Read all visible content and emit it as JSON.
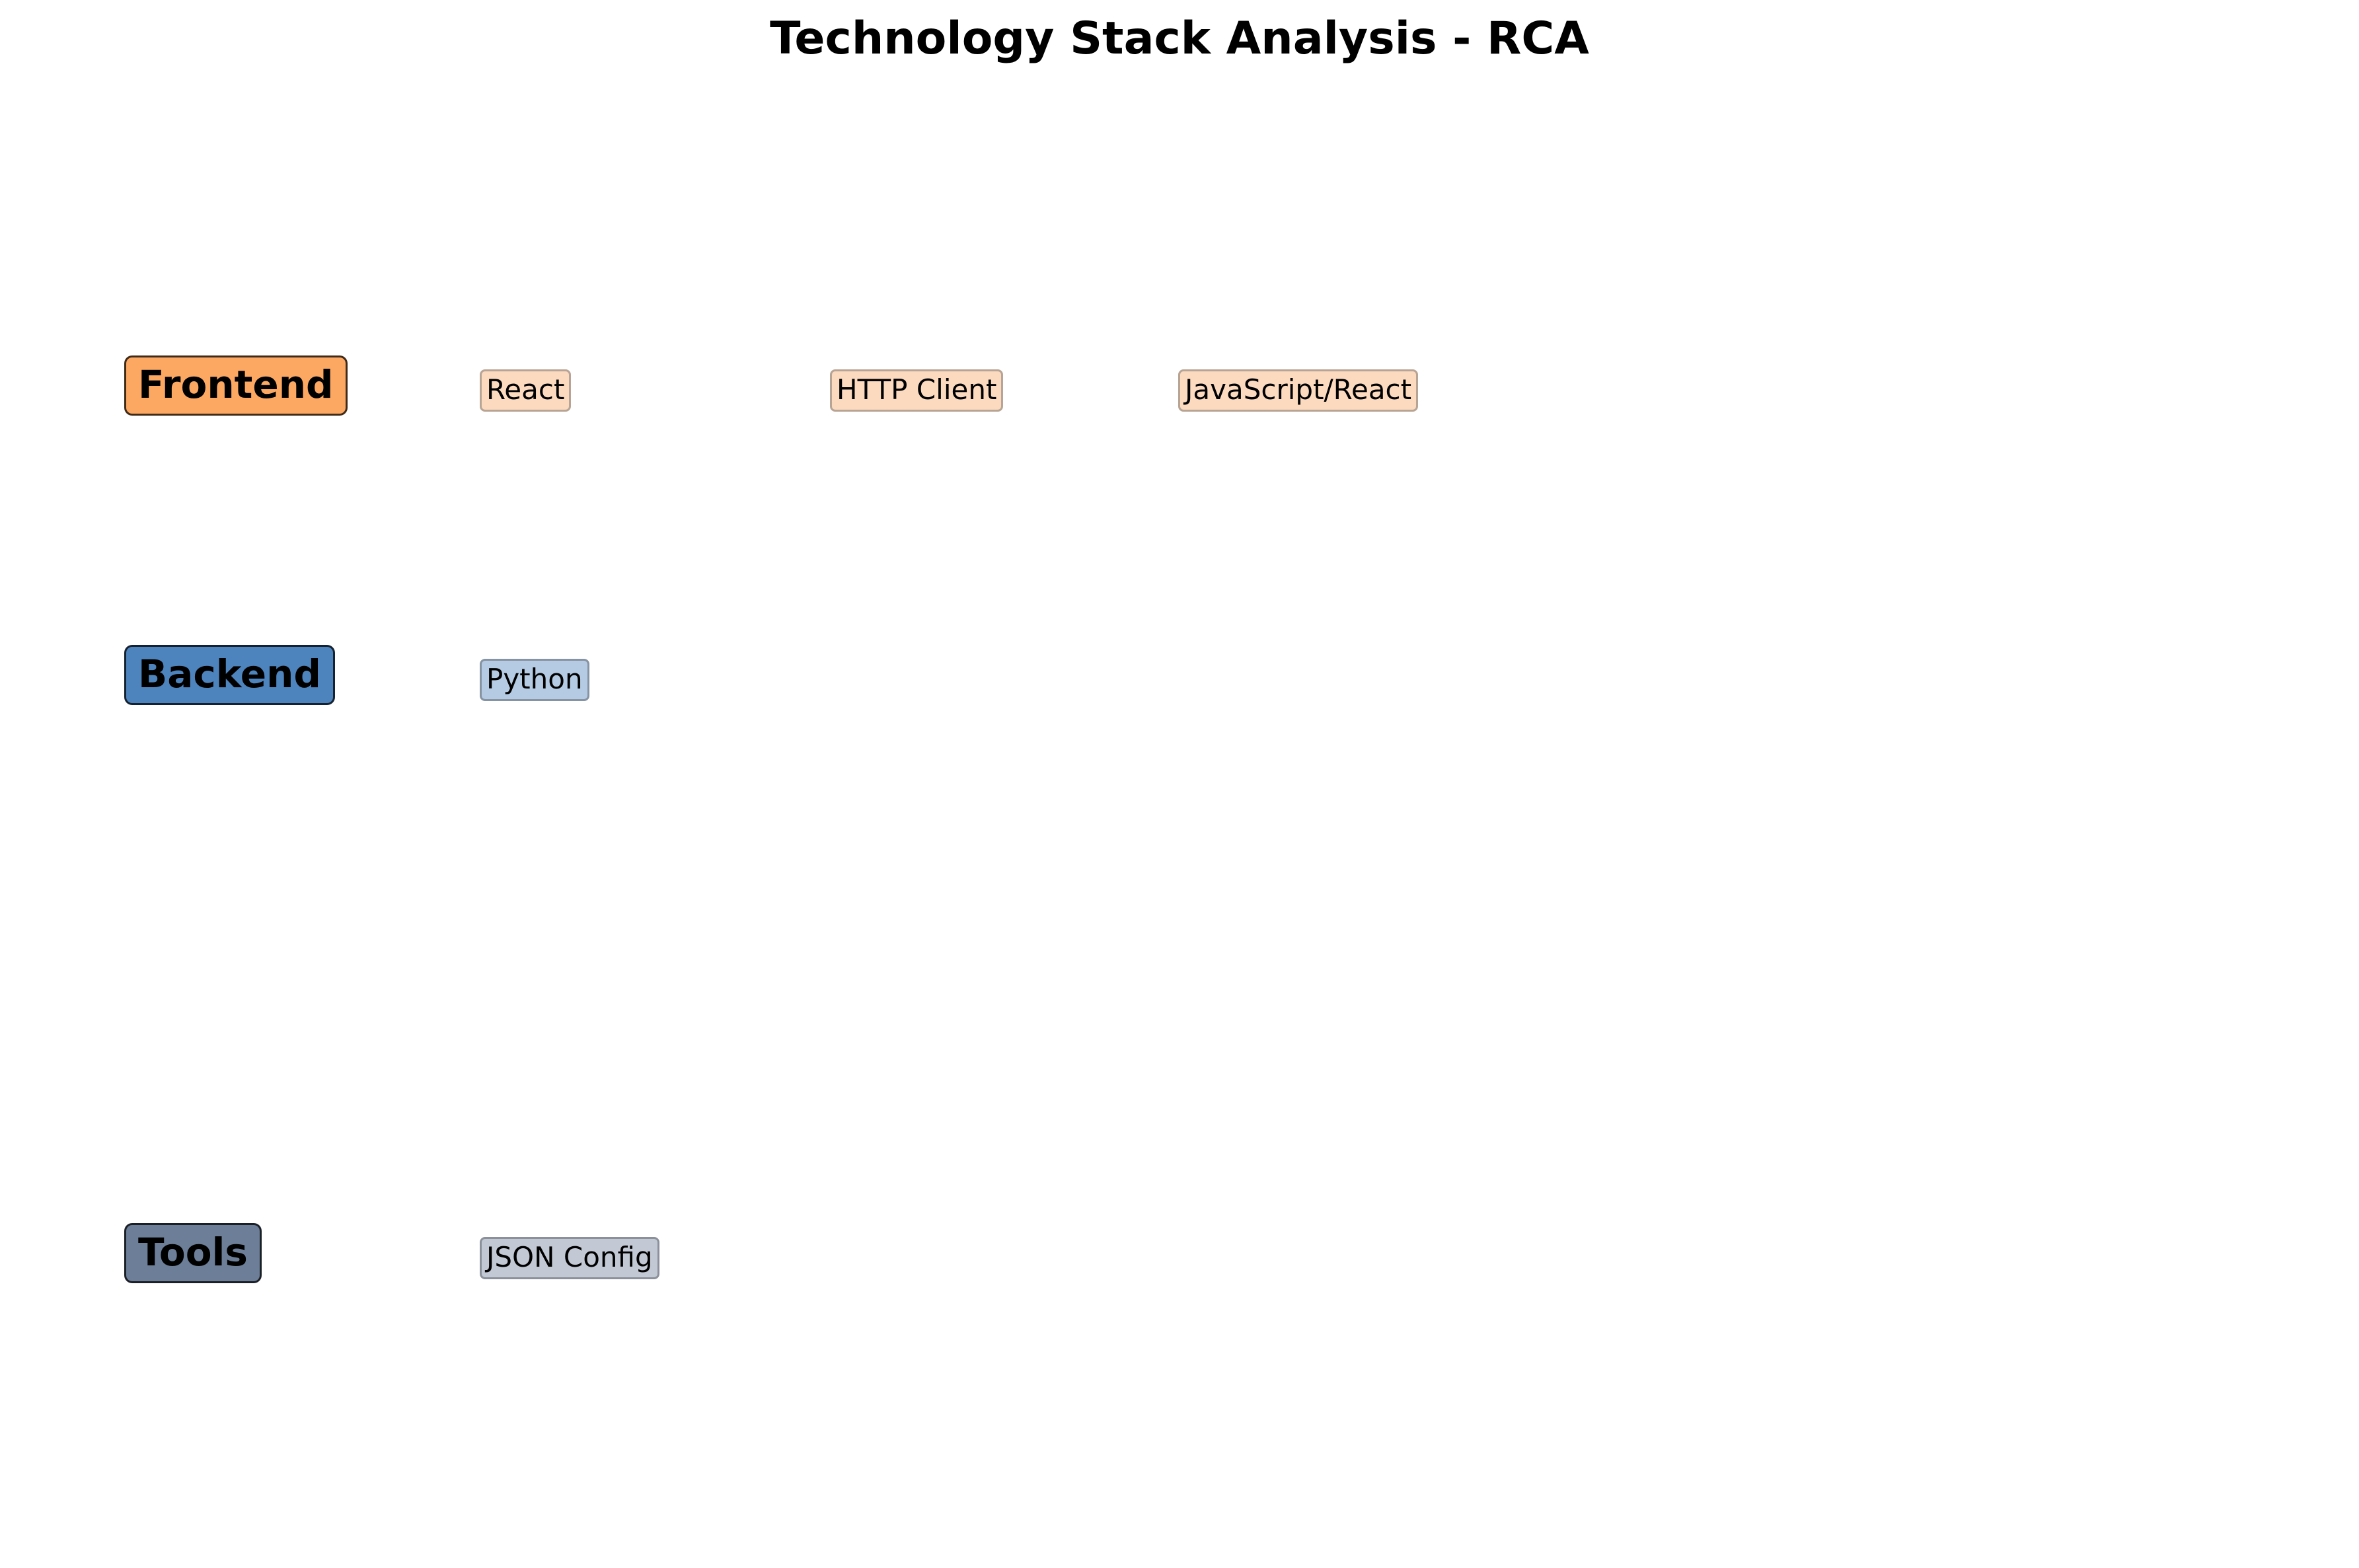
{
  "title": "Technology Stack Analysis - RCA",
  "colors": {
    "frontend_header": "#FDA862",
    "frontend_item_bg": "#FCDAC0",
    "frontend_item_border": "#B8A494",
    "backend_header": "#4E84BE",
    "backend_item_bg": "#B4CBE3",
    "backend_item_border": "#8593A3",
    "tools_header": "#6C7E98",
    "tools_item_bg": "#C3C9D4",
    "tools_item_border": "#8B919B"
  },
  "categories": [
    {
      "name": "Frontend",
      "items": [
        "React",
        "HTTP Client",
        "JavaScript/React"
      ]
    },
    {
      "name": "Backend",
      "items": [
        "Python"
      ]
    },
    {
      "name": "Tools",
      "items": [
        "JSON Config"
      ]
    }
  ]
}
